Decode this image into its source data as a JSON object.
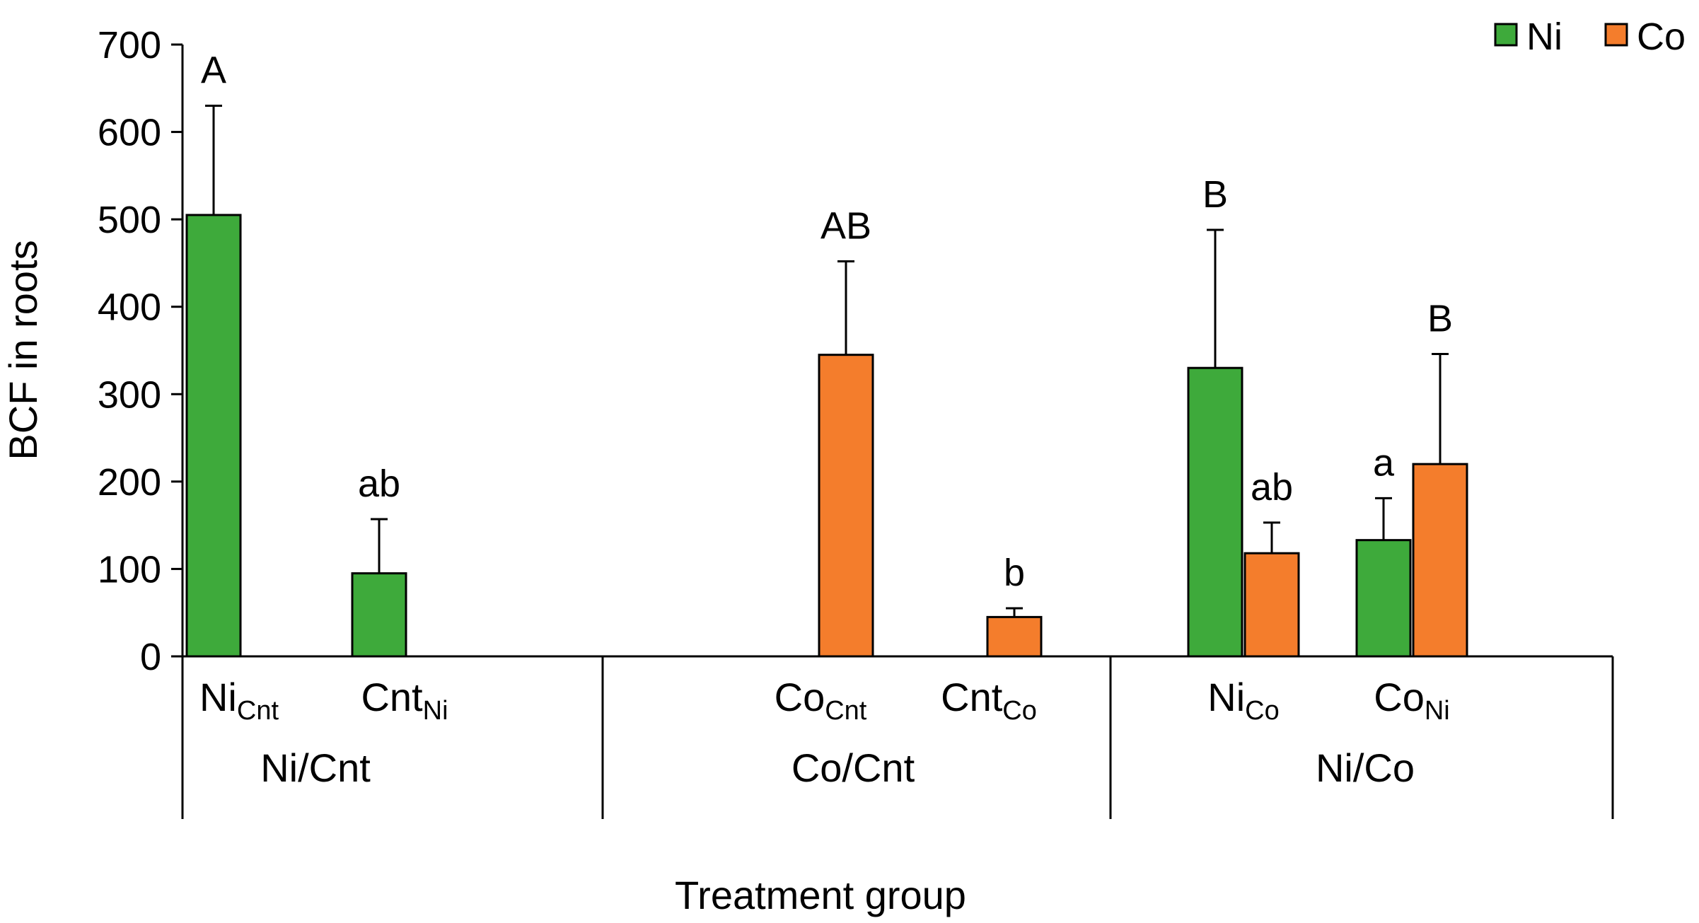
{
  "chart_data": {
    "type": "bar",
    "ylabel": "BCF in roots",
    "xlabel": "Treatment group",
    "ylim": [
      0,
      700
    ],
    "yticks": [
      "0",
      "100",
      "200",
      "300",
      "400",
      "500",
      "600",
      "700"
    ],
    "legend_position": "top-right",
    "grid": false,
    "colors": {
      "Ni": "#3eaa3b",
      "Co": "#f47d2c"
    },
    "series": [
      {
        "name": "Ni",
        "values": [
          505,
          95,
          null,
          null,
          330,
          133
        ],
        "errors": [
          125,
          62,
          null,
          null,
          158,
          48
        ],
        "sig": [
          "A",
          "ab",
          "",
          "",
          "B",
          "a"
        ]
      },
      {
        "name": "Co",
        "values": [
          null,
          null,
          345,
          45,
          118,
          220
        ],
        "errors": [
          null,
          null,
          107,
          10,
          35,
          126
        ],
        "sig": [
          "",
          "",
          "AB",
          "b",
          "ab",
          "B"
        ]
      }
    ],
    "categories": [
      {
        "main": "Ni",
        "sub": "Cnt"
      },
      {
        "main": "Cnt",
        "sub": "Ni"
      },
      {
        "main": "Co",
        "sub": "Cnt"
      },
      {
        "main": "Cnt",
        "sub": "Co"
      },
      {
        "main": "Ni",
        "sub": "Co"
      },
      {
        "main": "Co",
        "sub": "Ni"
      }
    ],
    "groups": [
      "Ni/Cnt",
      "Co/Cnt",
      "Ni/Co"
    ]
  }
}
